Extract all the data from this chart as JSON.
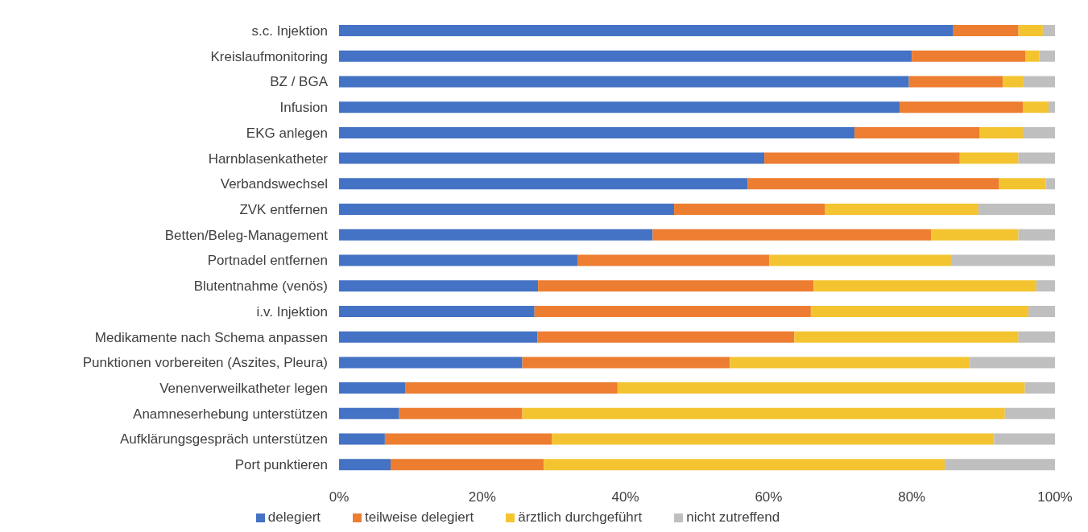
{
  "chart_data": {
    "type": "bar",
    "orientation": "horizontal",
    "stacked": true,
    "categories": [
      "s.c. Injektion",
      "Kreislaufmonitoring",
      "BZ / BGA",
      "Infusion",
      "EKG anlegen",
      "Harnblasenkatheter",
      "Verbandswechsel",
      "ZVK entfernen",
      "Betten/Beleg-Management",
      "Portnadel entfernen",
      "Blutentnahme (venös)",
      "i.v. Injektion",
      "Medikamente nach Schema anpassen",
      "Punktionen vorbereiten (Aszites, Pleura)",
      "Venenverweilkatheter legen",
      "Anamneserhebung unterstützen",
      "Aufklärungsgespräch unterstützen",
      "Port punktieren"
    ],
    "series": [
      {
        "name": "delegiert",
        "color": "#4472c4",
        "values": [
          85.8,
          80.0,
          79.6,
          78.3,
          72.0,
          59.4,
          57.1,
          46.8,
          43.8,
          33.3,
          27.8,
          27.3,
          27.7,
          25.6,
          9.3,
          8.4,
          6.4,
          7.2
        ]
      },
      {
        "name": "teilweise delegiert",
        "color": "#ed7d31",
        "values": [
          9.1,
          15.9,
          13.1,
          17.2,
          17.5,
          27.3,
          35.1,
          21.1,
          38.9,
          26.8,
          38.5,
          38.6,
          35.9,
          29.0,
          29.6,
          17.2,
          23.3,
          21.4
        ]
      },
      {
        "name": "ärztlich durchgeführt",
        "color": "#f4c430",
        "values": [
          3.4,
          1.9,
          2.9,
          3.6,
          6.0,
          8.2,
          6.5,
          21.4,
          12.2,
          25.5,
          31.1,
          30.4,
          31.3,
          33.5,
          56.9,
          67.4,
          61.8,
          56.0
        ]
      },
      {
        "name": "nicht zutreffend",
        "color": "#bfbfbf",
        "values": [
          1.7,
          2.2,
          4.4,
          0.9,
          4.5,
          5.1,
          1.3,
          10.7,
          5.1,
          14.4,
          2.6,
          3.7,
          5.1,
          11.9,
          4.2,
          7.0,
          8.5,
          15.4
        ]
      }
    ],
    "xlim": [
      0,
      100
    ],
    "xticks": [
      {
        "value": 0,
        "label": "0%"
      },
      {
        "value": 20,
        "label": "20%"
      },
      {
        "value": 40,
        "label": "40%"
      },
      {
        "value": 60,
        "label": "60%"
      },
      {
        "value": 80,
        "label": "80%"
      },
      {
        "value": 100,
        "label": "100%"
      }
    ],
    "legend": "bottom"
  }
}
